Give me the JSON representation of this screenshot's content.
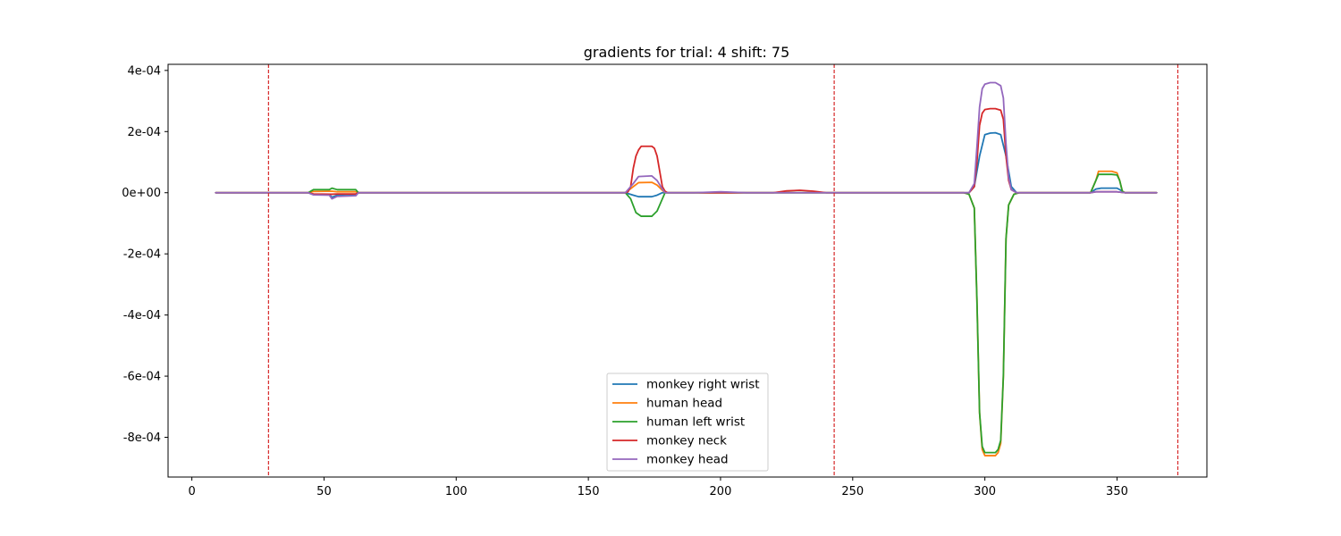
{
  "chart_data": {
    "type": "line",
    "title": "gradients for trial: 4 shift: 75",
    "xlabel": "",
    "ylabel": "",
    "xlim": [
      -9,
      384
    ],
    "ylim": [
      -0.00093,
      0.00042
    ],
    "x_ticks": [
      0,
      50,
      100,
      150,
      200,
      250,
      300,
      350
    ],
    "x_tick_labels": [
      "0",
      "50",
      "100",
      "150",
      "200",
      "250",
      "300",
      "350"
    ],
    "y_ticks": [
      0.0004,
      0.0002,
      0,
      -0.0002,
      -0.0004,
      -0.0006,
      -0.0008
    ],
    "y_tick_labels": [
      "4e-04",
      "2e-04",
      "0e+00",
      "-2e-04",
      "-4e-04",
      "-6e-04",
      "-8e-04"
    ],
    "grid": false,
    "legend_position": "lower-center",
    "vlines": {
      "x": [
        29,
        243,
        373
      ],
      "color": "#d62728",
      "style": "dashed"
    },
    "series": [
      {
        "name": "monkey right wrist",
        "color": "#1f77b4",
        "points": [
          [
            9,
            0
          ],
          [
            44,
            0
          ],
          [
            46,
            -5e-06
          ],
          [
            52,
            -5e-06
          ],
          [
            53,
            -1.5e-05
          ],
          [
            55,
            -8e-06
          ],
          [
            62,
            -5e-06
          ],
          [
            63,
            0
          ],
          [
            164,
            0
          ],
          [
            167,
            -8e-06
          ],
          [
            169,
            -1.3e-05
          ],
          [
            174,
            -1.3e-05
          ],
          [
            176,
            -8e-06
          ],
          [
            178,
            0
          ],
          [
            294,
            0
          ],
          [
            296,
            2e-05
          ],
          [
            298,
            0.00012
          ],
          [
            300,
            0.00019
          ],
          [
            302,
            0.000195
          ],
          [
            304,
            0.000196
          ],
          [
            306,
            0.00019
          ],
          [
            308,
            0.00012
          ],
          [
            310,
            2e-05
          ],
          [
            312,
            0
          ],
          [
            340,
            0
          ],
          [
            342,
            1.2e-05
          ],
          [
            344,
            1.5e-05
          ],
          [
            350,
            1.5e-05
          ],
          [
            352,
            5e-06
          ],
          [
            353,
            0
          ],
          [
            365,
            0
          ]
        ]
      },
      {
        "name": "human head",
        "color": "#ff7f0e",
        "points": [
          [
            9,
            0
          ],
          [
            44,
            0
          ],
          [
            46,
            4e-06
          ],
          [
            53,
            5e-06
          ],
          [
            55,
            3e-06
          ],
          [
            62,
            3e-06
          ],
          [
            63,
            0
          ],
          [
            164,
            0
          ],
          [
            167,
            2e-05
          ],
          [
            169,
            3.3e-05
          ],
          [
            174,
            3.4e-05
          ],
          [
            176,
            2.5e-05
          ],
          [
            178,
            8e-06
          ],
          [
            179,
            0
          ],
          [
            292,
            0
          ],
          [
            294,
            -5e-06
          ],
          [
            296,
            -5e-05
          ],
          [
            297,
            -0.00035
          ],
          [
            298,
            -0.00072
          ],
          [
            299,
            -0.00084
          ],
          [
            300,
            -0.00086
          ],
          [
            302,
            -0.00086
          ],
          [
            304,
            -0.00086
          ],
          [
            305,
            -0.00085
          ],
          [
            306,
            -0.00082
          ],
          [
            307,
            -0.0006
          ],
          [
            308,
            -0.00015
          ],
          [
            309,
            -4e-05
          ],
          [
            311,
            -5e-06
          ],
          [
            313,
            0
          ],
          [
            340,
            0
          ],
          [
            342,
            4e-05
          ],
          [
            343,
            7e-05
          ],
          [
            348,
            7e-05
          ],
          [
            350,
            6.5e-05
          ],
          [
            351,
            4e-05
          ],
          [
            352,
            5e-06
          ],
          [
            353,
            0
          ],
          [
            365,
            0
          ]
        ]
      },
      {
        "name": "human left wrist",
        "color": "#2ca02c",
        "points": [
          [
            9,
            0
          ],
          [
            44,
            0
          ],
          [
            46,
            1e-05
          ],
          [
            52,
            1e-05
          ],
          [
            53,
            1.5e-05
          ],
          [
            55,
            1e-05
          ],
          [
            62,
            1e-05
          ],
          [
            63,
            0
          ],
          [
            164,
            0
          ],
          [
            166,
            -2e-05
          ],
          [
            168,
            -6.5e-05
          ],
          [
            170,
            -7.7e-05
          ],
          [
            174,
            -7.7e-05
          ],
          [
            176,
            -6e-05
          ],
          [
            178,
            -2e-05
          ],
          [
            179,
            0
          ],
          [
            292,
            0
          ],
          [
            294,
            -5e-06
          ],
          [
            296,
            -5e-05
          ],
          [
            297,
            -0.00035
          ],
          [
            298,
            -0.00072
          ],
          [
            299,
            -0.00083
          ],
          [
            300,
            -0.00085
          ],
          [
            302,
            -0.00085
          ],
          [
            304,
            -0.00085
          ],
          [
            305,
            -0.00084
          ],
          [
            306,
            -0.00081
          ],
          [
            307,
            -0.0006
          ],
          [
            308,
            -0.00015
          ],
          [
            309,
            -4e-05
          ],
          [
            311,
            -5e-06
          ],
          [
            313,
            0
          ],
          [
            340,
            0
          ],
          [
            342,
            4e-05
          ],
          [
            343,
            6e-05
          ],
          [
            348,
            6e-05
          ],
          [
            350,
            5.8e-05
          ],
          [
            351,
            4e-05
          ],
          [
            352,
            5e-06
          ],
          [
            353,
            0
          ],
          [
            365,
            0
          ]
        ]
      },
      {
        "name": "monkey neck",
        "color": "#d62728",
        "points": [
          [
            9,
            0
          ],
          [
            44,
            0
          ],
          [
            46,
            -4e-06
          ],
          [
            53,
            -5e-06
          ],
          [
            55,
            -4e-06
          ],
          [
            62,
            -4e-06
          ],
          [
            63,
            0
          ],
          [
            164,
            0
          ],
          [
            165,
            3e-06
          ],
          [
            166,
            2e-05
          ],
          [
            167,
            8e-05
          ],
          [
            168,
            0.00012
          ],
          [
            169,
            0.00014
          ],
          [
            170,
            0.000152
          ],
          [
            174,
            0.000152
          ],
          [
            175,
            0.000145
          ],
          [
            176,
            0.00012
          ],
          [
            177,
            7e-05
          ],
          [
            178,
            2e-05
          ],
          [
            179,
            5e-06
          ],
          [
            180,
            0
          ],
          [
            220,
            0
          ],
          [
            225,
            6e-06
          ],
          [
            230,
            8e-06
          ],
          [
            235,
            5e-06
          ],
          [
            240,
            0
          ],
          [
            294,
            0
          ],
          [
            296,
            2e-05
          ],
          [
            297,
            0.0001
          ],
          [
            298,
            0.00022
          ],
          [
            299,
            0.00026
          ],
          [
            300,
            0.000272
          ],
          [
            302,
            0.000275
          ],
          [
            304,
            0.000275
          ],
          [
            306,
            0.00027
          ],
          [
            307,
            0.00024
          ],
          [
            308,
            0.00012
          ],
          [
            309,
            4e-05
          ],
          [
            310,
            1e-05
          ],
          [
            312,
            0
          ],
          [
            340,
            0
          ],
          [
            342,
            3e-06
          ],
          [
            350,
            3e-06
          ],
          [
            353,
            0
          ],
          [
            365,
            0
          ]
        ]
      },
      {
        "name": "monkey head",
        "color": "#9467bd",
        "points": [
          [
            9,
            0
          ],
          [
            44,
            0
          ],
          [
            46,
            -7e-06
          ],
          [
            52,
            -8e-06
          ],
          [
            53,
            -2e-05
          ],
          [
            55,
            -1.2e-05
          ],
          [
            62,
            -1e-05
          ],
          [
            63,
            0
          ],
          [
            164,
            0
          ],
          [
            167,
            3e-05
          ],
          [
            169,
            5.3e-05
          ],
          [
            174,
            5.5e-05
          ],
          [
            176,
            4e-05
          ],
          [
            178,
            1.2e-05
          ],
          [
            179,
            0
          ],
          [
            190,
            0
          ],
          [
            200,
            3e-06
          ],
          [
            210,
            0
          ],
          [
            294,
            0
          ],
          [
            296,
            3e-05
          ],
          [
            297,
            0.00015
          ],
          [
            298,
            0.00028
          ],
          [
            299,
            0.00034
          ],
          [
            300,
            0.000355
          ],
          [
            302,
            0.00036
          ],
          [
            304,
            0.00036
          ],
          [
            306,
            0.00035
          ],
          [
            307,
            0.00031
          ],
          [
            308,
            0.00016
          ],
          [
            309,
            5e-05
          ],
          [
            310,
            1e-05
          ],
          [
            312,
            0
          ],
          [
            340,
            0
          ],
          [
            342,
            3e-06
          ],
          [
            350,
            3e-06
          ],
          [
            353,
            0
          ],
          [
            365,
            0
          ]
        ]
      }
    ]
  }
}
